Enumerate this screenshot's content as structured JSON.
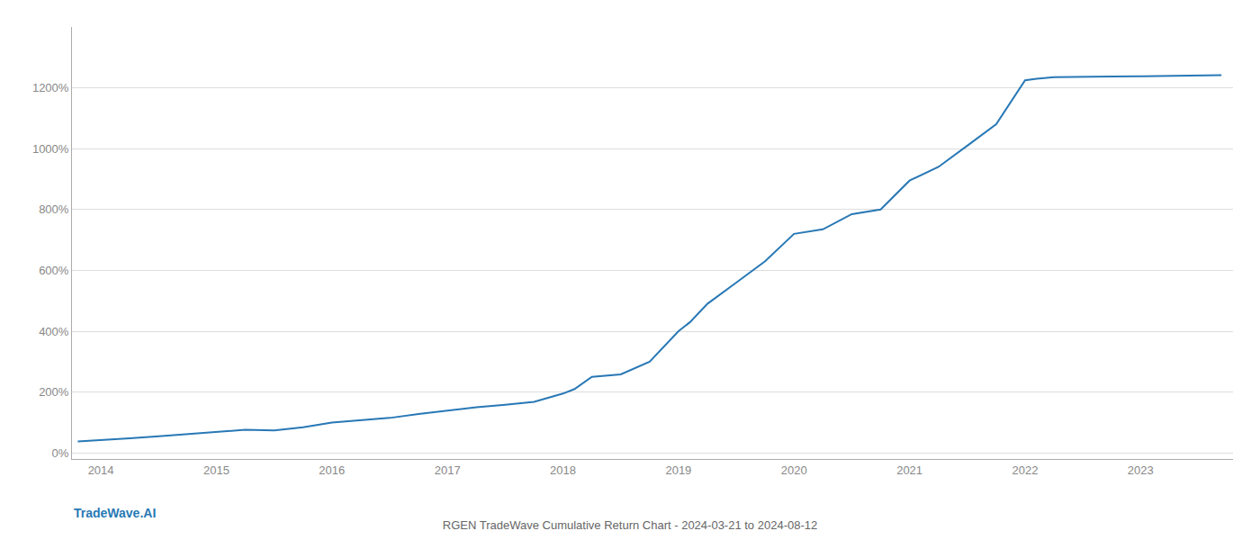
{
  "chart_data": {
    "type": "line",
    "title": "RGEN TradeWave Cumulative Return Chart - 2024-03-21 to 2024-08-12",
    "annotations": [
      {
        "text": "TradeWave.AI"
      }
    ],
    "x": [
      2013.8,
      2014.0,
      2014.25,
      2014.5,
      2014.75,
      2015.0,
      2015.25,
      2015.5,
      2015.75,
      2016.0,
      2016.25,
      2016.5,
      2016.75,
      2017.0,
      2017.25,
      2017.5,
      2017.75,
      2018.0,
      2018.1,
      2018.25,
      2018.5,
      2018.75,
      2019.0,
      2019.1,
      2019.25,
      2019.5,
      2019.75,
      2020.0,
      2020.25,
      2020.5,
      2020.75,
      2021.0,
      2021.25,
      2021.5,
      2021.75,
      2022.0,
      2022.1,
      2022.25,
      2022.5,
      2022.75,
      2023.0,
      2023.25,
      2023.5,
      2023.7
    ],
    "values": [
      38,
      42,
      48,
      55,
      62,
      68,
      76,
      74,
      84,
      100,
      108,
      115,
      128,
      140,
      150,
      158,
      168,
      195,
      210,
      250,
      258,
      300,
      400,
      430,
      490,
      560,
      630,
      720,
      735,
      785,
      800,
      895,
      940,
      1010,
      1080,
      1225,
      1230,
      1235,
      1235,
      1237,
      1238,
      1240,
      1240,
      1242
    ],
    "color": "#2878b5",
    "xlim": [
      2013.75,
      2023.8
    ],
    "xticks": [
      2014,
      2015,
      2016,
      2017,
      2018,
      2019,
      2020,
      2021,
      2022,
      2023
    ],
    "ylim": [
      -20,
      1400
    ],
    "yticks": [
      {
        "value": 0,
        "label": "0%"
      },
      {
        "value": 200,
        "label": "200%"
      },
      {
        "value": 400,
        "label": "400%"
      },
      {
        "value": 600,
        "label": "600%"
      },
      {
        "value": 800,
        "label": "800%"
      },
      {
        "value": 1000,
        "label": "1000%"
      },
      {
        "value": 1200,
        "label": "1200%"
      }
    ],
    "grid": "y"
  }
}
